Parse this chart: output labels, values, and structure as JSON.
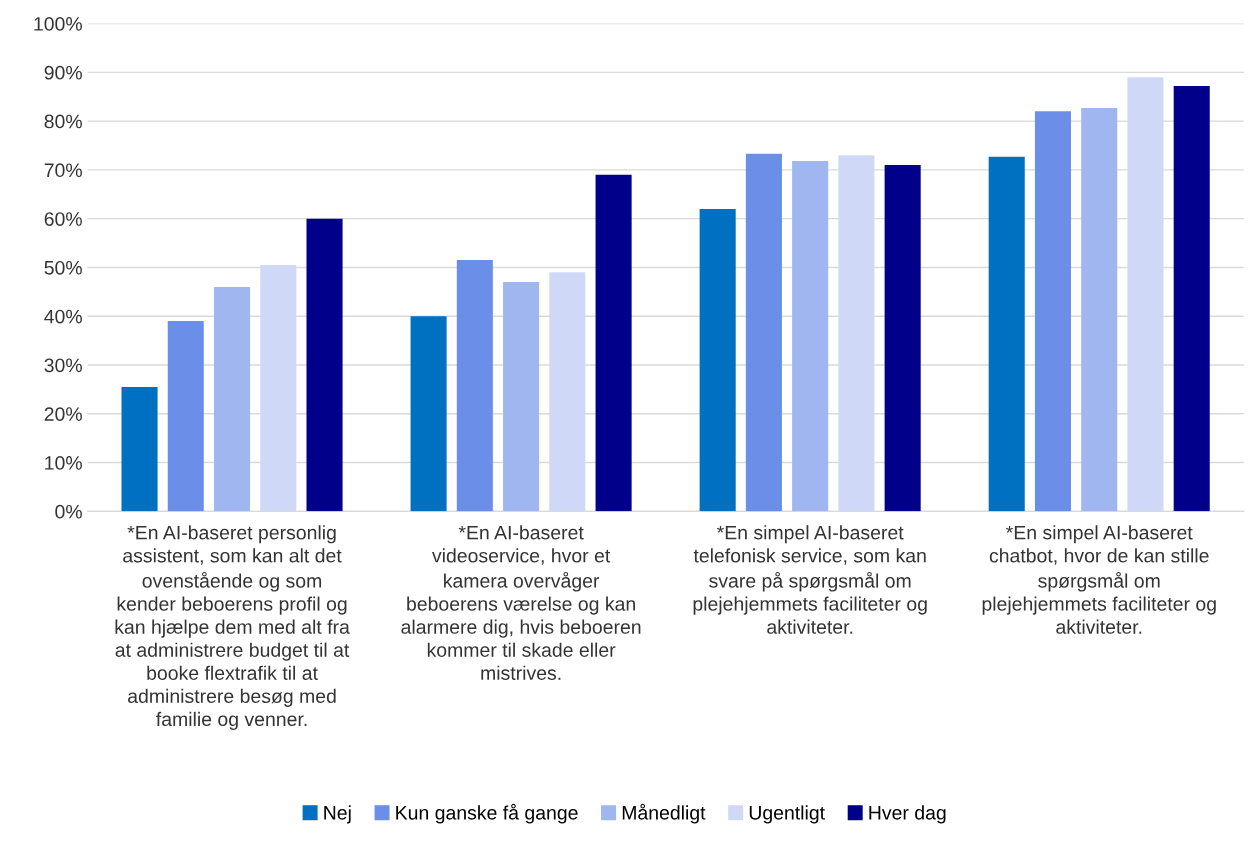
{
  "chart_data": {
    "type": "bar",
    "categories": [
      "*En AI-baseret personlig\nassistent, som kan alt det\novenstående og som\nkender beboerens profil og\nkan hjælpe dem med alt fra\nat administrere budget til at\nbooke flextrafik til at\nadministrere besøg med\nfamilie og venner.",
      "*En AI-baseret\nvideoservice, hvor et\nkamera overvåger\nbeboerens værelse og kan\nalarmere dig, hvis beboeren\nkommer til skade eller\nmistrives.",
      "*En simpel AI-baseret\ntelefonisk service, som kan\nsvare på spørgsmål om\nplejehjemmets faciliteter og\naktiviteter.",
      "*En simpel AI-baseret\nchatbot, hvor de kan stille\nspørgsmål om\nplejehjemmets faciliteter og\naktiviteter."
    ],
    "series": [
      {
        "name": "Nej",
        "color": "#0070c0",
        "values": [
          25.5,
          40,
          62,
          72.7
        ]
      },
      {
        "name": "Kun ganske få gange",
        "color": "#6b8fe8",
        "values": [
          39,
          51.5,
          73.3,
          82
        ]
      },
      {
        "name": "Månedligt",
        "color": "#a0b6f0",
        "values": [
          46,
          47,
          71.8,
          82.7
        ]
      },
      {
        "name": "Ugentligt",
        "color": "#cfd9f7",
        "values": [
          50.5,
          49,
          73,
          89
        ]
      },
      {
        "name": "Hver dag",
        "color": "#00008b",
        "values": [
          60,
          69,
          71,
          87.2
        ]
      }
    ],
    "ylim": [
      0,
      100
    ],
    "yticks": [
      {
        "value": 0,
        "label": "0%"
      },
      {
        "value": 10,
        "label": "10%"
      },
      {
        "value": 20,
        "label": "20%"
      },
      {
        "value": 30,
        "label": "30%"
      },
      {
        "value": 40,
        "label": "40%"
      },
      {
        "value": 50,
        "label": "50%"
      },
      {
        "value": 60,
        "label": "60%"
      },
      {
        "value": 70,
        "label": "70%"
      },
      {
        "value": 80,
        "label": "80%"
      },
      {
        "value": 90,
        "label": "90%"
      },
      {
        "value": 100,
        "label": "100%"
      }
    ],
    "grid": "y",
    "legend": "bottom"
  }
}
